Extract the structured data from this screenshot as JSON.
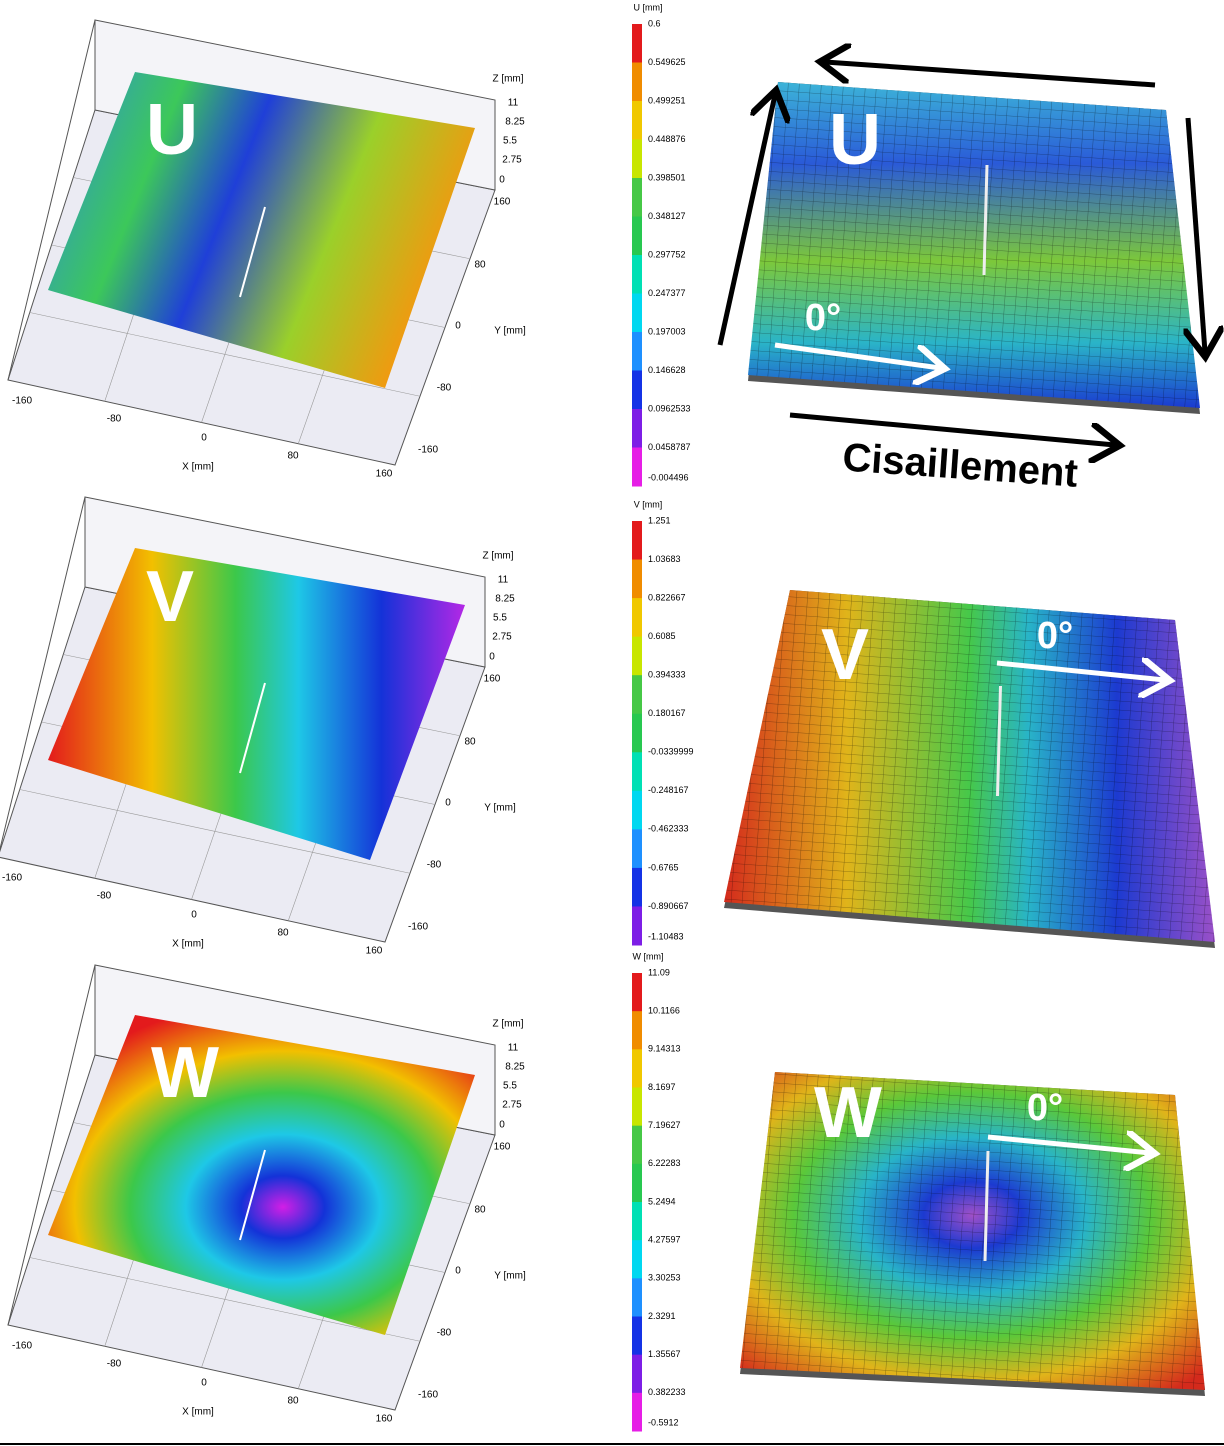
{
  "panels": [
    {
      "label": "U",
      "direction": "0°",
      "colorbar": {
        "title": "U [mm]",
        "ticks": [
          "0.6",
          "0.549625",
          "0.499251",
          "0.448876",
          "0.398501",
          "0.348127",
          "0.297752",
          "0.247377",
          "0.197003",
          "0.146628",
          "0.0962533",
          "0.0458787",
          "-0.004496"
        ]
      },
      "axes": {
        "z_title": "Z [mm]",
        "z_ticks": [
          "11",
          "8.25",
          "5.5",
          "2.75",
          "0"
        ],
        "y_title": "Y [mm]",
        "y_ticks": [
          "160",
          "80",
          "0",
          "-80",
          "-160"
        ],
        "x_title": "X [mm]",
        "x_ticks": [
          "-160",
          "-80",
          "0",
          "80",
          "160"
        ]
      }
    },
    {
      "label": "V",
      "direction": "0°",
      "colorbar": {
        "title": "V [mm]",
        "ticks": [
          "1.251",
          "1.03683",
          "0.822667",
          "0.6085",
          "0.394333",
          "0.180167",
          "-0.0339999",
          "-0.248167",
          "-0.462333",
          "-0.6765",
          "-0.890667",
          "-1.10483"
        ]
      },
      "axes": {
        "z_title": "Z [mm]",
        "z_ticks": [
          "11",
          "8.25",
          "5.5",
          "2.75",
          "0"
        ],
        "y_title": "Y [mm]",
        "y_ticks": [
          "160",
          "80",
          "0",
          "-80",
          "-160"
        ],
        "x_title": "X [mm]",
        "x_ticks": [
          "-160",
          "-80",
          "0",
          "80",
          "160"
        ]
      }
    },
    {
      "label": "W",
      "direction": "0°",
      "colorbar": {
        "title": "W [mm]",
        "ticks": [
          "11.09",
          "10.1166",
          "9.14313",
          "8.1697",
          "7.19627",
          "6.22283",
          "5.2494",
          "4.27597",
          "3.30253",
          "2.3291",
          "1.35567",
          "0.382233",
          "-0.5912"
        ]
      },
      "axes": {
        "z_title": "Z [mm]",
        "z_ticks": [
          "11",
          "8.25",
          "5.5",
          "2.75",
          "0"
        ],
        "y_title": "Y [mm]",
        "y_ticks": [
          "160",
          "80",
          "0",
          "-80",
          "-160"
        ],
        "x_title": "X [mm]",
        "x_ticks": [
          "-160",
          "-80",
          "0",
          "80",
          "160"
        ]
      }
    }
  ],
  "shear_label": "Cisaillement"
}
